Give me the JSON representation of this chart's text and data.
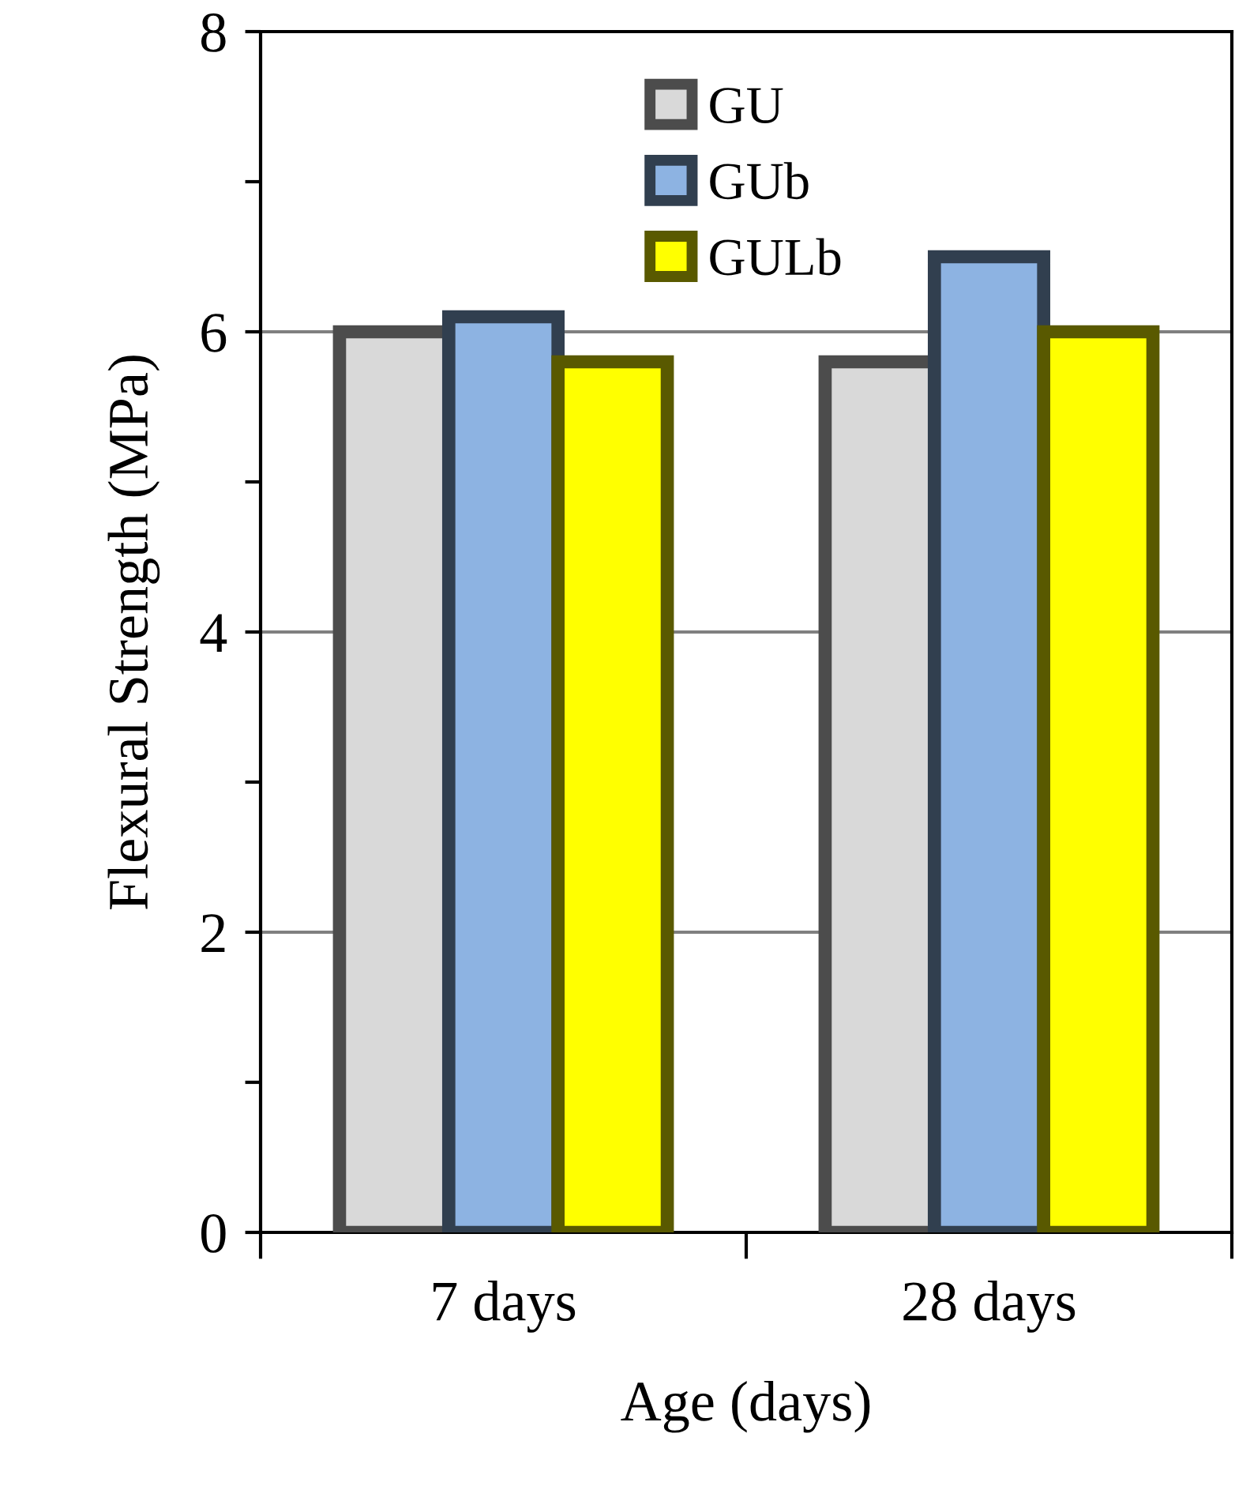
{
  "chart_data": {
    "type": "bar",
    "xlabel": "Age (days)",
    "ylabel": "Flexural Strength (MPa)",
    "categories": [
      "7 days",
      "28 days"
    ],
    "series": [
      {
        "name": "GU",
        "color": "#d9d9d9",
        "values": [
          6.0,
          5.8
        ]
      },
      {
        "name": "GUb",
        "color": "#8db3e2",
        "values": [
          6.1,
          6.5
        ]
      },
      {
        "name": "GULb",
        "color": "#ffff00",
        "values": [
          5.8,
          6.0
        ]
      }
    ],
    "ylim": [
      0,
      8
    ],
    "yticks": [
      0,
      {
        "value": 1,
        "label": null
      },
      2,
      {
        "value": 3,
        "label": null
      },
      4,
      {
        "value": 5,
        "label": null
      },
      6,
      {
        "value": 7,
        "label": null
      },
      8
    ],
    "grid": "y",
    "legend": "top"
  }
}
